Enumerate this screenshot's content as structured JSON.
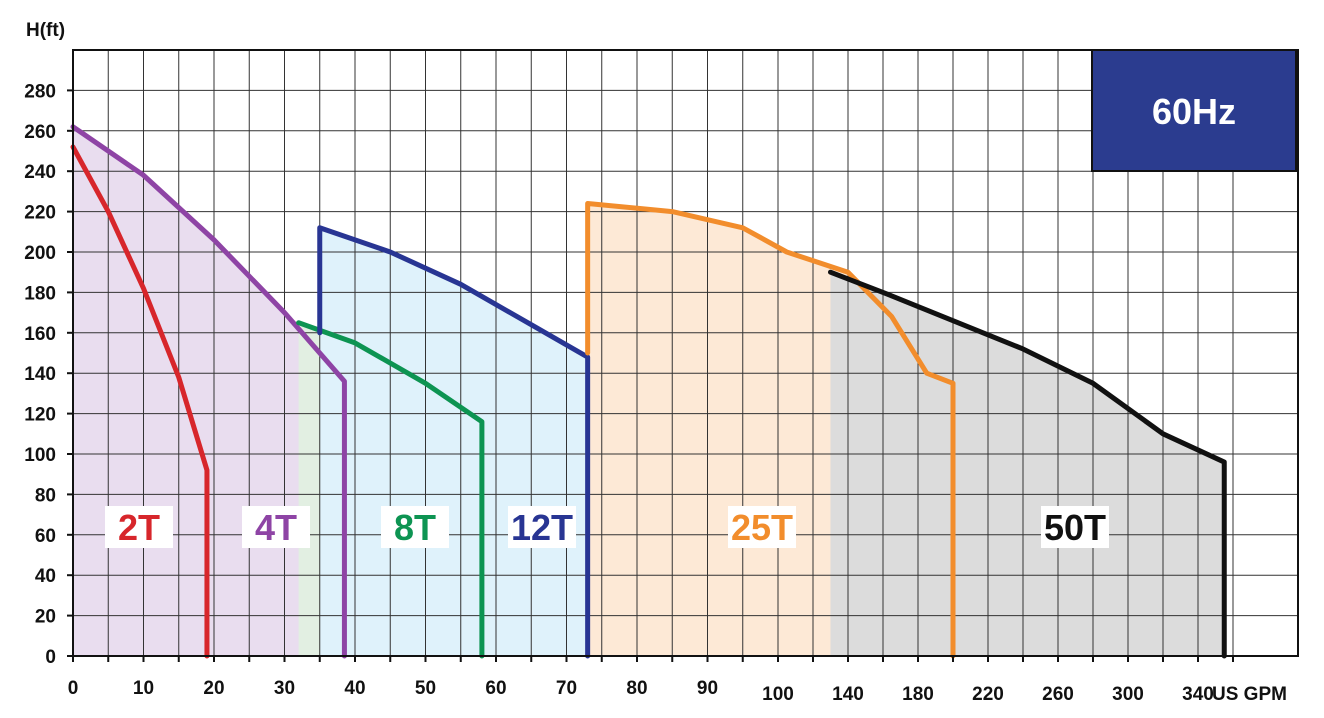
{
  "chart_data": {
    "type": "area",
    "title": "",
    "badge": "60Hz",
    "xlabel": "US GPM",
    "ylabel": "H(ft)",
    "ylim": [
      0,
      300
    ],
    "yticks": [
      0,
      20,
      40,
      60,
      80,
      100,
      120,
      140,
      160,
      180,
      200,
      220,
      240,
      260,
      280
    ],
    "xticks": [
      "0",
      "10",
      "20",
      "30",
      "40",
      "50",
      "60",
      "70",
      "80",
      "90",
      "100",
      "140",
      "180",
      "220",
      "260",
      "300",
      "340"
    ],
    "x_scale_note": "linear 0-100 then compressed 100-360",
    "grid": true,
    "series": [
      {
        "name": "2T",
        "color": "#d7262b",
        "fill": "#fbe1d6",
        "points": [
          [
            0,
            252
          ],
          [
            5,
            220
          ],
          [
            10,
            182
          ],
          [
            15,
            138
          ],
          [
            19,
            92
          ],
          [
            19,
            0
          ]
        ]
      },
      {
        "name": "4T",
        "color": "#8e44a5",
        "fill": "#e9ddef",
        "points": [
          [
            0,
            262
          ],
          [
            10,
            238
          ],
          [
            20,
            206
          ],
          [
            30,
            170
          ],
          [
            38.5,
            136
          ],
          [
            38.5,
            0
          ]
        ]
      },
      {
        "name": "8T",
        "color": "#0d9452",
        "fill": "#e2efe2",
        "points": [
          [
            32,
            165
          ],
          [
            40,
            155
          ],
          [
            50,
            135
          ],
          [
            58,
            116
          ],
          [
            58,
            0
          ]
        ]
      },
      {
        "name": "12T",
        "color": "#283593",
        "fill": "#dff2fb",
        "points": [
          [
            35,
            160
          ],
          [
            35,
            212
          ],
          [
            45,
            200
          ],
          [
            55,
            184
          ],
          [
            65,
            164
          ],
          [
            73,
            148
          ],
          [
            73,
            0
          ]
        ]
      },
      {
        "name": "25T",
        "color": "#f28d2c",
        "fill": "#fde9d6",
        "points": [
          [
            73,
            150
          ],
          [
            73,
            224
          ],
          [
            85,
            220
          ],
          [
            95,
            212
          ],
          [
            105,
            200
          ],
          [
            140,
            190
          ],
          [
            165,
            168
          ],
          [
            185,
            140
          ],
          [
            200,
            135
          ],
          [
            200,
            0
          ]
        ]
      },
      {
        "name": "50T",
        "color": "#111111",
        "fill": "#dcdcdc",
        "points": [
          [
            130,
            190
          ],
          [
            160,
            180
          ],
          [
            200,
            166
          ],
          [
            240,
            152
          ],
          [
            280,
            135
          ],
          [
            320,
            110
          ],
          [
            355,
            96
          ],
          [
            355,
            0
          ]
        ]
      }
    ]
  }
}
